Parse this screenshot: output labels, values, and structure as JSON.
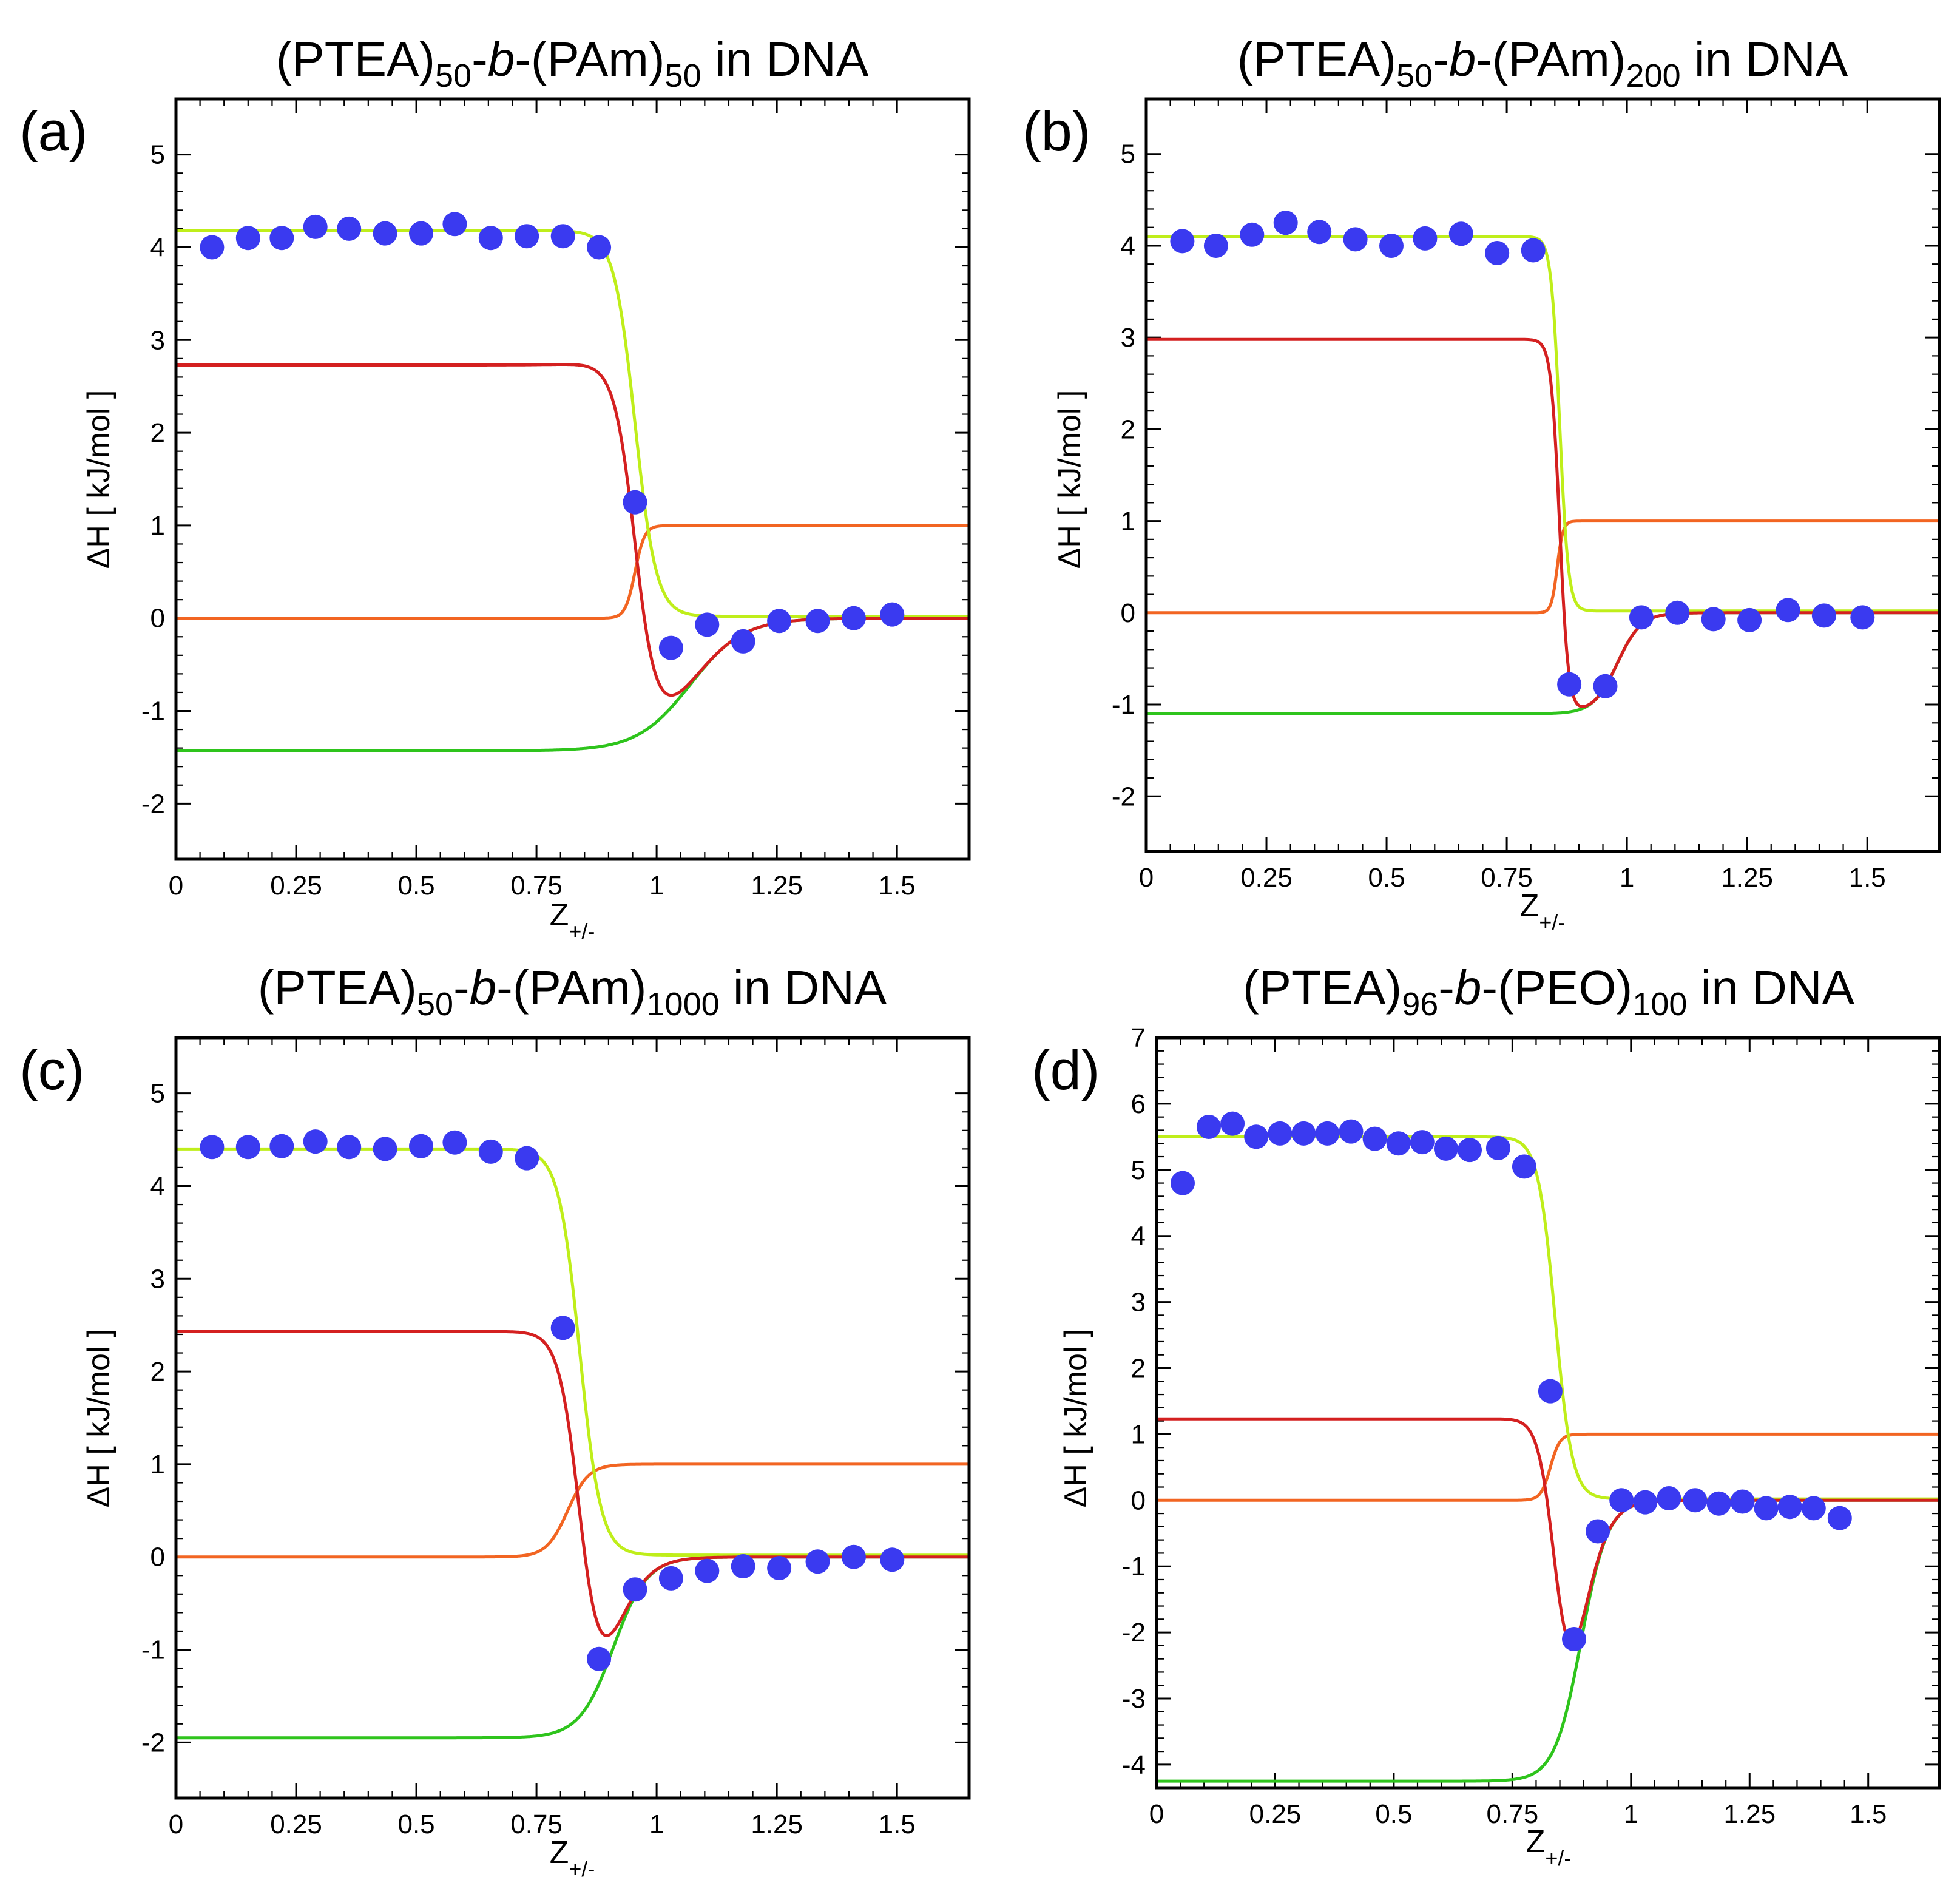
{
  "figure": {
    "xlabel": "Z",
    "xlabel_sub": "+/-",
    "ylabel": "ΔH [ kJ/mol ]",
    "colors": {
      "points": "#3a3af0",
      "total_fit": "#d42020",
      "fit_step1": "#bfee1a",
      "fit_step2": "#2ec41c",
      "transition": "#f26522"
    }
  },
  "chart_data": [
    {
      "type": "scatter",
      "panel_label": "(a)",
      "title": {
        "p1": "(PTEA)",
        "s1": "50",
        "p2": "-",
        "it": "b",
        "p3": "-(PAm)",
        "s2": "50",
        "p4": " in DNA"
      },
      "xlim": [
        0,
        1.65
      ],
      "ylim": [
        -2.6,
        5.6
      ],
      "xticks": [
        0,
        0.25,
        0.5,
        0.75,
        1,
        1.25,
        1.5
      ],
      "xticklabels": [
        "0",
        "0.25",
        "0.5",
        "0.75",
        "1",
        "1.25",
        "1.5"
      ],
      "yticks": [
        -2,
        -1,
        0,
        1,
        2,
        3,
        4,
        5
      ],
      "yticklabels": [
        "-2",
        "-1",
        "0",
        "1",
        "2",
        "3",
        "4",
        "5"
      ],
      "points": {
        "x": [
          0.075,
          0.15,
          0.22,
          0.29,
          0.36,
          0.435,
          0.51,
          0.58,
          0.655,
          0.73,
          0.805,
          0.88,
          0.955,
          1.03,
          1.105,
          1.18,
          1.255,
          1.335,
          1.41,
          1.49
        ],
        "y": [
          4.0,
          4.1,
          4.1,
          4.22,
          4.2,
          4.15,
          4.15,
          4.25,
          4.1,
          4.12,
          4.12,
          4.0,
          1.25,
          -0.32,
          -0.07,
          -0.25,
          -0.03,
          -0.03,
          0.0,
          0.04
        ]
      },
      "curves": {
        "step1": {
          "A": 4.18,
          "x0": 0.955,
          "w": 0.022,
          "base": 0.02
        },
        "step2": {
          "A": -1.43,
          "x0": 1.07,
          "w": 0.055
        },
        "transition": {
          "x0": 0.955,
          "w": 0.01
        }
      }
    },
    {
      "type": "scatter",
      "panel_label": "(b)",
      "title": {
        "p1": "(PTEA)",
        "s1": "50",
        "p2": "-",
        "it": "b",
        "p3": "-(PAm)",
        "s2": "200",
        "p4": " in DNA"
      },
      "xlim": [
        0,
        1.65
      ],
      "ylim": [
        -2.6,
        5.6
      ],
      "xticks": [
        0,
        0.25,
        0.5,
        0.75,
        1,
        1.25,
        1.5
      ],
      "xticklabels": [
        "0",
        "0.25",
        "0.5",
        "0.75",
        "1",
        "1.25",
        "1.5"
      ],
      "yticks": [
        -2,
        -1,
        0,
        1,
        2,
        3,
        4,
        5
      ],
      "yticklabels": [
        "-2",
        "-1",
        "0",
        "1",
        "2",
        "3",
        "4",
        "5"
      ],
      "points": {
        "x": [
          0.075,
          0.145,
          0.22,
          0.29,
          0.36,
          0.435,
          0.51,
          0.58,
          0.655,
          0.73,
          0.805,
          0.88,
          0.955,
          1.03,
          1.105,
          1.18,
          1.255,
          1.335,
          1.41,
          1.49
        ],
        "y": [
          4.05,
          4.0,
          4.12,
          4.25,
          4.15,
          4.07,
          4.0,
          4.08,
          4.13,
          3.92,
          3.95,
          -0.78,
          -0.8,
          -0.05,
          0.0,
          -0.07,
          -0.08,
          0.03,
          -0.03,
          -0.05
        ]
      },
      "curves": {
        "step1": {
          "A": 4.1,
          "x0": 0.86,
          "w": 0.009,
          "base": 0.02
        },
        "step2": {
          "A": -1.1,
          "x0": 0.98,
          "w": 0.025
        },
        "transition": {
          "x0": 0.855,
          "w": 0.006
        }
      }
    },
    {
      "type": "scatter",
      "panel_label": "(c)",
      "title": {
        "p1": "(PTEA)",
        "s1": "50",
        "p2": "-",
        "it": "b",
        "p3": "-(PAm)",
        "s2": "1000",
        "p4": " in DNA"
      },
      "xlim": [
        0,
        1.65
      ],
      "ylim": [
        -2.6,
        5.6
      ],
      "xticks": [
        0,
        0.25,
        0.5,
        0.75,
        1,
        1.25,
        1.5
      ],
      "xticklabels": [
        "0",
        "0.25",
        "0.5",
        "0.75",
        "1",
        "1.25",
        "1.5"
      ],
      "yticks": [
        -2,
        -1,
        0,
        1,
        2,
        3,
        4,
        5
      ],
      "yticklabels": [
        "-2",
        "-1",
        "0",
        "1",
        "2",
        "3",
        "4",
        "5"
      ],
      "points": {
        "x": [
          0.075,
          0.15,
          0.22,
          0.29,
          0.36,
          0.435,
          0.51,
          0.58,
          0.655,
          0.73,
          0.805,
          0.88,
          0.955,
          1.03,
          1.105,
          1.18,
          1.255,
          1.335,
          1.41,
          1.49
        ],
        "y": [
          4.42,
          4.42,
          4.43,
          4.48,
          4.42,
          4.4,
          4.43,
          4.47,
          4.37,
          4.3,
          2.47,
          -1.1,
          -0.35,
          -0.23,
          -0.15,
          -0.1,
          -0.12,
          -0.05,
          0.0,
          -0.03
        ]
      },
      "curves": {
        "step1": {
          "A": 4.4,
          "x0": 0.84,
          "w": 0.022,
          "base": 0.02
        },
        "step2": {
          "A": -1.95,
          "x0": 0.91,
          "w": 0.035
        },
        "transition": {
          "x0": 0.815,
          "w": 0.022
        }
      }
    },
    {
      "type": "scatter",
      "panel_label": "(d)",
      "title": {
        "p1": "(PTEA)",
        "s1": "96",
        "p2": "-",
        "it": "b",
        "p3": "-(PEO)",
        "s2": "100",
        "p4": " in DNA"
      },
      "xlim": [
        0,
        1.65
      ],
      "ylim": [
        -4.35,
        7.0
      ],
      "xticks": [
        0,
        0.25,
        0.5,
        0.75,
        1,
        1.25,
        1.5
      ],
      "xticklabels": [
        "0",
        "0.25",
        "0.5",
        "0.75",
        "1",
        "1.25",
        "1.5"
      ],
      "yticks": [
        -4,
        -3,
        -2,
        -1,
        0,
        1,
        2,
        3,
        4,
        5,
        6,
        7
      ],
      "yticklabels": [
        "-4",
        "-3",
        "-2",
        "-1",
        "0",
        "1",
        "2",
        "3",
        "4",
        "5",
        "6",
        "7"
      ],
      "points": {
        "x": [
          0.055,
          0.11,
          0.16,
          0.21,
          0.26,
          0.31,
          0.36,
          0.41,
          0.46,
          0.51,
          0.56,
          0.61,
          0.66,
          0.72,
          0.775,
          0.83,
          0.88,
          0.93,
          0.98,
          1.03,
          1.08,
          1.135,
          1.185,
          1.235,
          1.285,
          1.335,
          1.385,
          1.44
        ],
        "y": [
          4.8,
          5.65,
          5.7,
          5.5,
          5.55,
          5.55,
          5.55,
          5.58,
          5.47,
          5.4,
          5.42,
          5.32,
          5.3,
          5.33,
          5.05,
          1.65,
          -2.1,
          -0.47,
          0.0,
          -0.03,
          0.03,
          0.0,
          -0.05,
          -0.02,
          -0.12,
          -0.1,
          -0.12,
          -0.27
        ]
      },
      "curves": {
        "step1": {
          "A": 5.5,
          "x0": 0.84,
          "w": 0.018,
          "base": 0.02
        },
        "step2": {
          "A": -4.25,
          "x0": 0.895,
          "w": 0.028
        },
        "transition": {
          "x0": 0.83,
          "w": 0.01
        }
      }
    }
  ]
}
